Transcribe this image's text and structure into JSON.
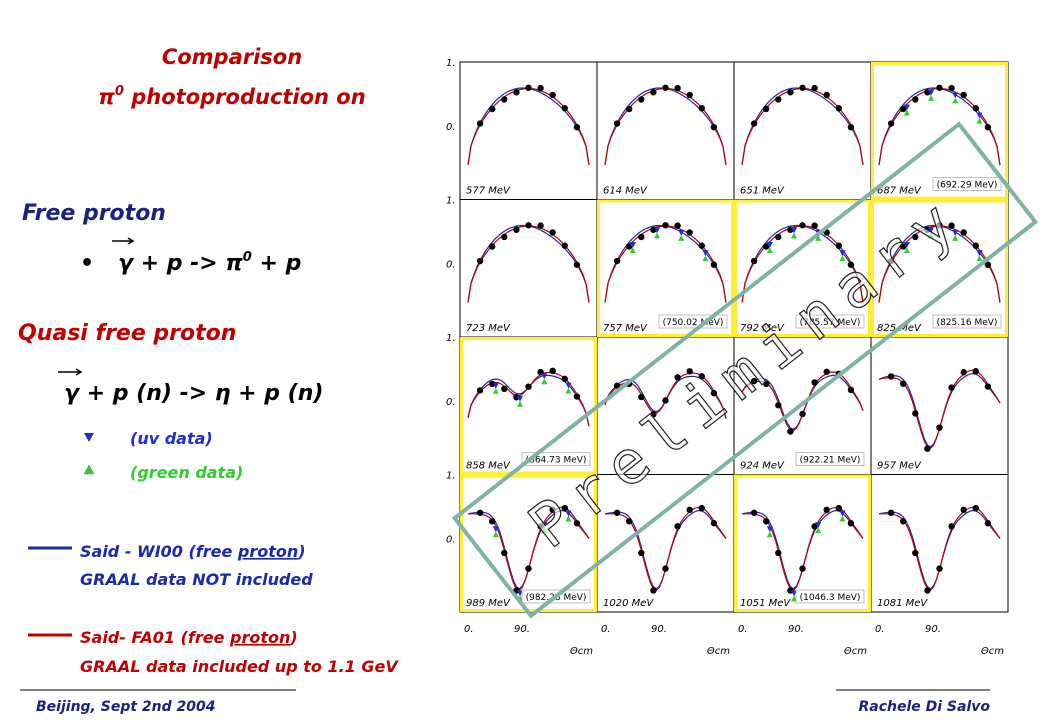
{
  "title": {
    "line1": "Comparison",
    "line2": [
      "π",
      "0",
      " photoproduction on"
    ]
  },
  "free": {
    "heading": "Free proton",
    "bullet": "•",
    "reaction": [
      "γ",
      " + p -> π",
      "0",
      " + p"
    ]
  },
  "quasi": {
    "heading": "Quasi free proton",
    "reaction": [
      "γ",
      " + p (n) -> ",
      "η",
      " + p (n)"
    ]
  },
  "markers": [
    {
      "label": "(uv data)",
      "color": "#1f2fd0"
    },
    {
      "label": "(green data)",
      "color": "#33cc33"
    }
  ],
  "models": [
    {
      "line1": [
        "Said - WI00 (free ",
        "proton",
        ")"
      ],
      "line2": "GRAAL data NOT included",
      "color": "#1a2aa8"
    },
    {
      "line1": [
        "Said- FA01 (free ",
        "proton",
        ")"
      ],
      "line2": "GRAAL data included up to 1.1 GeV",
      "color": "#c00000"
    }
  ],
  "axes": {
    "y_labels": [
      "1.",
      "0."
    ],
    "x_labels": [
      "0.",
      "90.",
      "0."
    ],
    "x_title": "Θcm"
  },
  "panels": [
    {
      "label": "577 MeV",
      "highlight": false
    },
    {
      "label": "614 MeV",
      "highlight": false
    },
    {
      "label": "651 MeV",
      "highlight": false
    },
    {
      "label": "687 MeV",
      "note": "(692.29 MeV)",
      "highlight": true
    },
    {
      "label": "723 MeV",
      "highlight": false
    },
    {
      "label": "757 MeV",
      "note": "(750.02 MeV)",
      "highlight": true
    },
    {
      "label": "792 MeV",
      "note": "(785.57 MeV)",
      "highlight": true
    },
    {
      "label": "825 MeV",
      "note": "(825.16 MeV)",
      "highlight": true
    },
    {
      "label": "858 MeV",
      "note": "(864.73 MeV)",
      "highlight": true
    },
    {
      "highlight": false
    },
    {
      "label": "924 MeV",
      "note": "(922.21 MeV)",
      "highlight": false
    },
    {
      "label": "957 MeV",
      "highlight": false
    },
    {
      "label": "989 MeV",
      "note": "(982.28 MeV)",
      "highlight": true
    },
    {
      "label": "1020 MeV",
      "highlight": false
    },
    {
      "label": "1051 MeV",
      "note": "(1046.3 MeV)",
      "highlight": true
    },
    {
      "label": "1081 MeV",
      "highlight": false
    }
  ],
  "watermark": "Preliminary",
  "footer": {
    "left": "Beijing, Sept 2nd 2004",
    "right": "Rachele Di Salvo"
  }
}
